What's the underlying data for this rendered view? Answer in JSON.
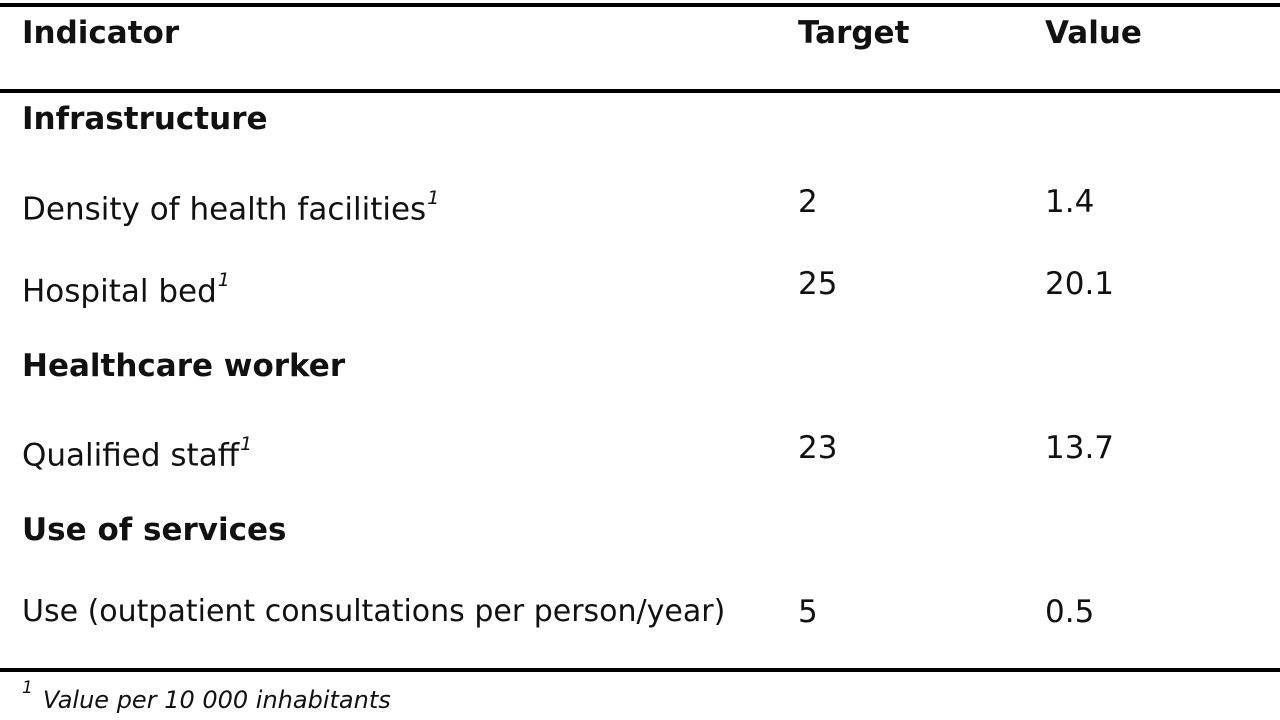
{
  "table": {
    "headers": {
      "indicator": "Indicator",
      "target": "Target",
      "value": "Value"
    },
    "rows": [
      {
        "kind": "section",
        "indicator": "Infrastructure"
      },
      {
        "kind": "data",
        "indicator": "Density of health facilities",
        "footnote_mark": "1",
        "target": "2",
        "value": "1.4"
      },
      {
        "kind": "data",
        "indicator": "Hospital bed",
        "footnote_mark": "1",
        "target": "25",
        "value": "20.1"
      },
      {
        "kind": "section",
        "indicator": "Healthcare worker"
      },
      {
        "kind": "data",
        "indicator": "Qualified staff",
        "footnote_mark": "1",
        "target": "23",
        "value": "13.7"
      },
      {
        "kind": "section",
        "indicator": "Use of services"
      },
      {
        "kind": "data",
        "indicator": "Use (outpatient consultations per person/year)",
        "target": "5",
        "value": "0.5"
      }
    ],
    "footnote": {
      "mark": "1",
      "text": "Value per 10 000 inhabitants"
    }
  }
}
